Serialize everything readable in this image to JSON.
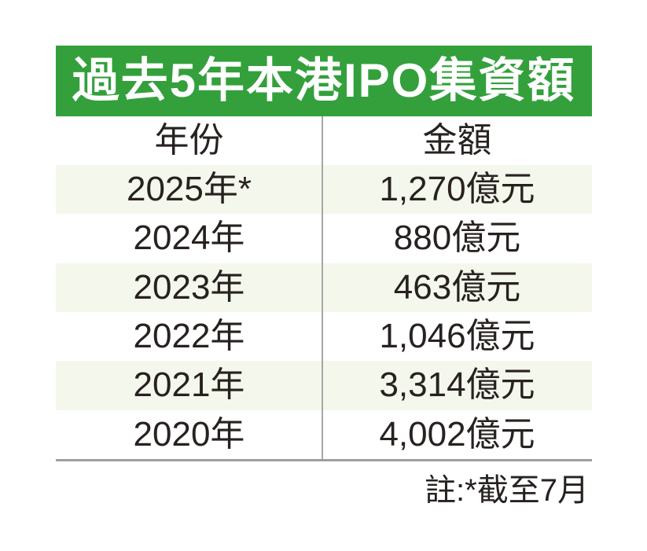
{
  "title": "過去5年本港IPO集資額",
  "table": {
    "columns": [
      "年份",
      "金額"
    ],
    "rows": [
      {
        "year": "2025年*",
        "amount": "1,270億元"
      },
      {
        "year": "2024年",
        "amount": "880億元"
      },
      {
        "year": "2023年",
        "amount": "463億元"
      },
      {
        "year": "2022年",
        "amount": "1,046億元"
      },
      {
        "year": "2021年",
        "amount": "3,314億元"
      },
      {
        "year": "2020年",
        "amount": "4,002億元"
      }
    ]
  },
  "note": "註:*截至7月",
  "colors": {
    "title_bar_green": "#33a03c",
    "title_text_white": "#ffffff",
    "row_shade_pale_green": "#f4f7ec",
    "divider_gray": "#a6a6a6",
    "bottom_rule_gray": "#9e9e9e",
    "text_dark": "#272220"
  },
  "chart_data": {
    "type": "table",
    "title": "過去5年本港IPO集資額",
    "columns": [
      "年份",
      "金額"
    ],
    "categories": [
      "2025年*",
      "2024年",
      "2023年",
      "2022年",
      "2021年",
      "2020年"
    ],
    "values": [
      1270,
      880,
      463,
      1046,
      3314,
      4002
    ],
    "unit": "億元",
    "note": "註:*截至7月",
    "layout_hints": {
      "striped_rows": [
        0,
        2,
        4
      ],
      "header_style": "green-banner",
      "alignment": "center"
    }
  }
}
